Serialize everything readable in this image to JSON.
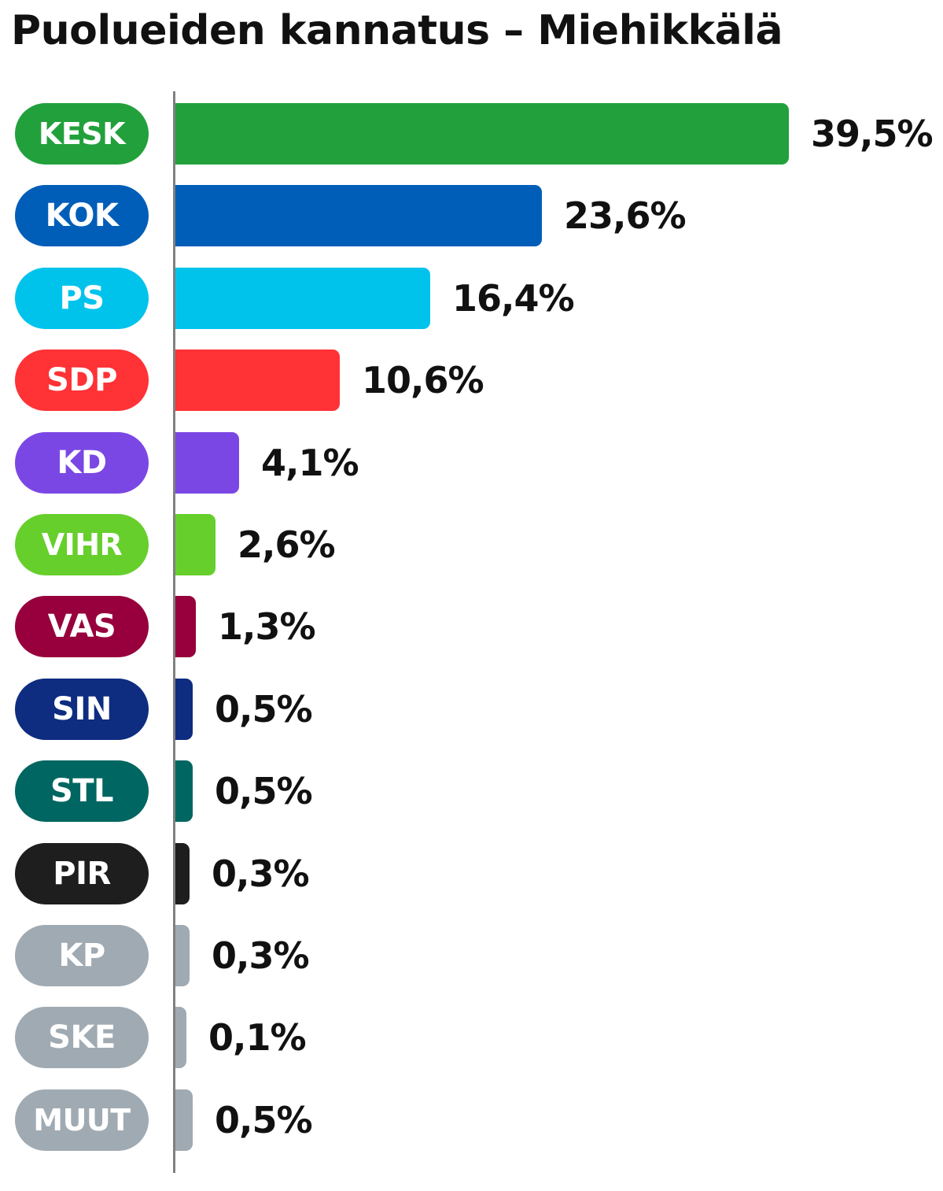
{
  "chart_data": {
    "type": "bar",
    "orientation": "horizontal",
    "title": "Puolueiden kannatus – Miehikkälä",
    "xlabel": "",
    "ylabel": "",
    "xlim": [
      0,
      39.5
    ],
    "grid": false,
    "legend": "none",
    "categories": [
      "KESK",
      "KOK",
      "PS",
      "SDP",
      "KD",
      "VIHR",
      "VAS",
      "SIN",
      "STL",
      "PIR",
      "KP",
      "SKE",
      "MUUT"
    ],
    "values": [
      39.5,
      23.6,
      16.4,
      10.6,
      4.1,
      2.6,
      1.3,
      0.5,
      0.5,
      0.3,
      0.3,
      0.1,
      0.5
    ],
    "value_labels": [
      "39,5%",
      "23,6%",
      "16,4%",
      "10,6%",
      "4,1%",
      "2,6%",
      "1,3%",
      "0,5%",
      "0,5%",
      "0,3%",
      "0,3%",
      "0,1%",
      "0,5%"
    ],
    "colors": [
      "#22a03c",
      "#005eb8",
      "#00c3ec",
      "#ff3236",
      "#7b47e4",
      "#66cf2c",
      "#97003d",
      "#0e2c80",
      "#006661",
      "#1e1e1e",
      "#a0aab2",
      "#a0aab2",
      "#a0aab2"
    ]
  }
}
